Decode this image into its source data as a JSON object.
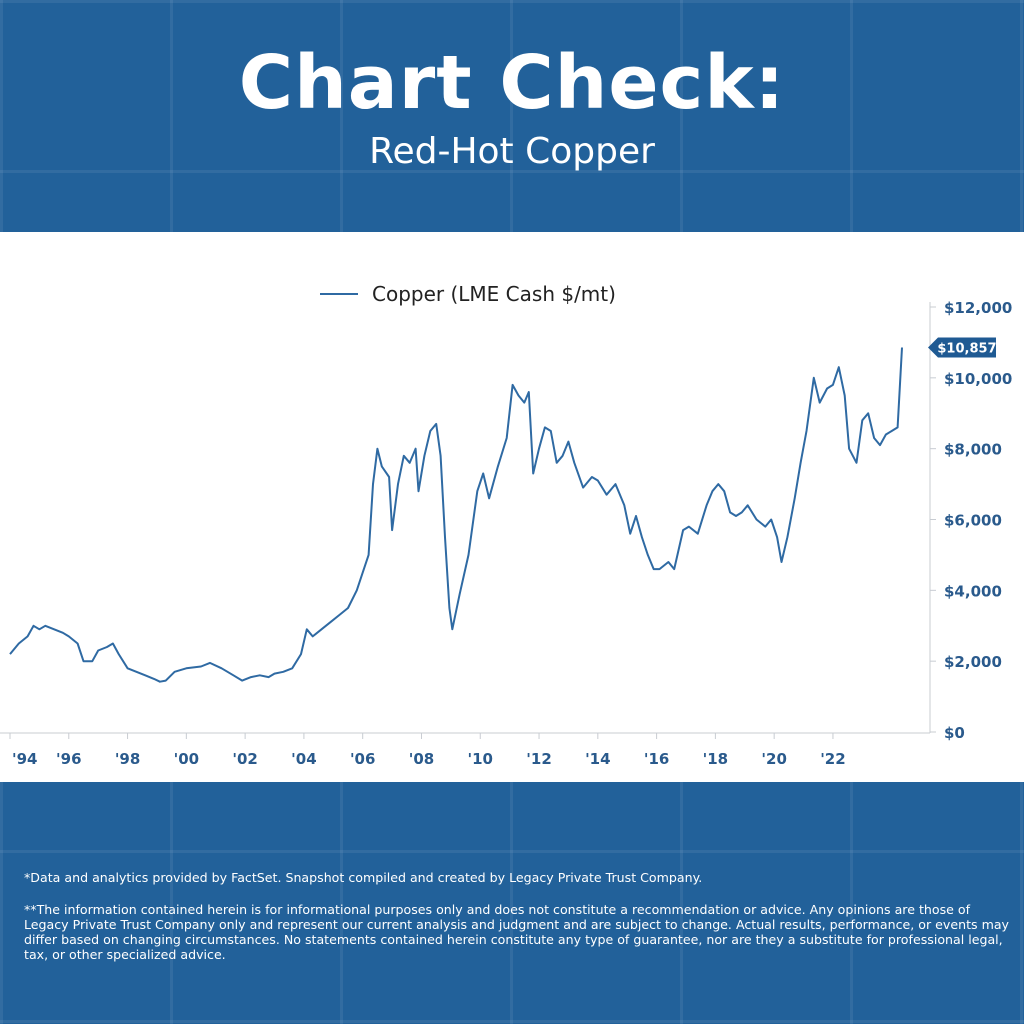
{
  "header": {
    "title": "Chart Check:",
    "subtitle": "Red-Hot Copper"
  },
  "footer": {
    "note1": "*Data and analytics provided by FactSet. Snapshot compiled and created by Legacy Private Trust Company.",
    "note2": "**The information contained herein is for informational purposes only and does not constitute a recommendation or advice. Any opinions are those of Legacy Private Trust Company only and represent our current analysis and judgment and are subject to change. Actual results, performance, or events may differ based on changing circumstances. No statements contained herein constitute any type of guarantee, nor are they a substitute for professional legal, tax, or other specialized advice."
  },
  "colors": {
    "background": "#22619a",
    "line": "#2f6aa3",
    "axis_text": "#2a5a8c",
    "callout": "#1f5a93"
  },
  "chart_data": {
    "type": "line",
    "title": "Chart Check: Red-Hot Copper",
    "legend": "Copper (LME Cash $/mt)",
    "legend_position": "top",
    "series": [
      {
        "name": "Copper (LME Cash $/mt)",
        "points": [
          [
            1994.0,
            2200
          ],
          [
            1994.3,
            2500
          ],
          [
            1994.6,
            2700
          ],
          [
            1994.8,
            3000
          ],
          [
            1995.0,
            2900
          ],
          [
            1995.2,
            3000
          ],
          [
            1995.5,
            2900
          ],
          [
            1995.8,
            2800
          ],
          [
            1996.0,
            2700
          ],
          [
            1996.3,
            2500
          ],
          [
            1996.5,
            2000
          ],
          [
            1996.8,
            2000
          ],
          [
            1997.0,
            2300
          ],
          [
            1997.3,
            2400
          ],
          [
            1997.5,
            2500
          ],
          [
            1997.7,
            2200
          ],
          [
            1998.0,
            1800
          ],
          [
            1998.3,
            1700
          ],
          [
            1998.6,
            1600
          ],
          [
            1998.9,
            1500
          ],
          [
            1999.1,
            1420
          ],
          [
            1999.3,
            1450
          ],
          [
            1999.6,
            1700
          ],
          [
            2000.0,
            1800
          ],
          [
            2000.5,
            1850
          ],
          [
            2000.8,
            1950
          ],
          [
            2001.2,
            1800
          ],
          [
            2001.6,
            1600
          ],
          [
            2001.9,
            1450
          ],
          [
            2002.2,
            1550
          ],
          [
            2002.5,
            1600
          ],
          [
            2002.8,
            1550
          ],
          [
            2003.0,
            1650
          ],
          [
            2003.3,
            1700
          ],
          [
            2003.6,
            1800
          ],
          [
            2003.9,
            2200
          ],
          [
            2004.1,
            2900
          ],
          [
            2004.3,
            2700
          ],
          [
            2004.6,
            2900
          ],
          [
            2004.9,
            3100
          ],
          [
            2005.2,
            3300
          ],
          [
            2005.5,
            3500
          ],
          [
            2005.8,
            4000
          ],
          [
            2006.0,
            4500
          ],
          [
            2006.2,
            5000
          ],
          [
            2006.35,
            7000
          ],
          [
            2006.5,
            8000
          ],
          [
            2006.65,
            7500
          ],
          [
            2006.9,
            7200
          ],
          [
            2007.0,
            5700
          ],
          [
            2007.2,
            7000
          ],
          [
            2007.4,
            7800
          ],
          [
            2007.6,
            7600
          ],
          [
            2007.8,
            8000
          ],
          [
            2007.9,
            6800
          ],
          [
            2008.1,
            7800
          ],
          [
            2008.3,
            8500
          ],
          [
            2008.5,
            8700
          ],
          [
            2008.65,
            7800
          ],
          [
            2008.8,
            5500
          ],
          [
            2008.95,
            3500
          ],
          [
            2009.05,
            2900
          ],
          [
            2009.3,
            3900
          ],
          [
            2009.6,
            5000
          ],
          [
            2009.9,
            6800
          ],
          [
            2010.1,
            7300
          ],
          [
            2010.3,
            6600
          ],
          [
            2010.6,
            7500
          ],
          [
            2010.9,
            8300
          ],
          [
            2011.1,
            9800
          ],
          [
            2011.3,
            9500
          ],
          [
            2011.5,
            9300
          ],
          [
            2011.65,
            9600
          ],
          [
            2011.8,
            7300
          ],
          [
            2012.0,
            8000
          ],
          [
            2012.2,
            8600
          ],
          [
            2012.4,
            8500
          ],
          [
            2012.6,
            7600
          ],
          [
            2012.8,
            7800
          ],
          [
            2013.0,
            8200
          ],
          [
            2013.2,
            7600
          ],
          [
            2013.5,
            6900
          ],
          [
            2013.8,
            7200
          ],
          [
            2014.0,
            7100
          ],
          [
            2014.3,
            6700
          ],
          [
            2014.6,
            7000
          ],
          [
            2014.9,
            6400
          ],
          [
            2015.1,
            5600
          ],
          [
            2015.3,
            6100
          ],
          [
            2015.5,
            5500
          ],
          [
            2015.7,
            5000
          ],
          [
            2015.9,
            4600
          ],
          [
            2016.1,
            4600
          ],
          [
            2016.4,
            4800
          ],
          [
            2016.6,
            4600
          ],
          [
            2016.9,
            5700
          ],
          [
            2017.1,
            5800
          ],
          [
            2017.4,
            5600
          ],
          [
            2017.7,
            6400
          ],
          [
            2017.9,
            6800
          ],
          [
            2018.1,
            7000
          ],
          [
            2018.3,
            6800
          ],
          [
            2018.5,
            6200
          ],
          [
            2018.7,
            6100
          ],
          [
            2018.9,
            6200
          ],
          [
            2019.1,
            6400
          ],
          [
            2019.4,
            6000
          ],
          [
            2019.7,
            5800
          ],
          [
            2019.9,
            6000
          ],
          [
            2020.1,
            5500
          ],
          [
            2020.25,
            4800
          ],
          [
            2020.45,
            5500
          ],
          [
            2020.7,
            6600
          ],
          [
            2020.9,
            7600
          ],
          [
            2021.1,
            8500
          ],
          [
            2021.35,
            10000
          ],
          [
            2021.55,
            9300
          ],
          [
            2021.8,
            9700
          ],
          [
            2022.0,
            9800
          ],
          [
            2022.2,
            10300
          ],
          [
            2022.4,
            9500
          ],
          [
            2022.55,
            8000
          ],
          [
            2022.8,
            7600
          ],
          [
            2023.0,
            8800
          ],
          [
            2023.2,
            9000
          ],
          [
            2023.4,
            8300
          ],
          [
            2023.6,
            8100
          ],
          [
            2023.8,
            8400
          ],
          [
            2024.0,
            8500
          ],
          [
            2024.2,
            8600
          ],
          [
            2024.35,
            10857
          ]
        ]
      }
    ],
    "xlim": [
      1994,
      2025.2
    ],
    "ylim": [
      0,
      12000
    ],
    "x_ticks": [
      {
        "value": 1994,
        "label": "'94"
      },
      {
        "value": 1996,
        "label": "'96"
      },
      {
        "value": 1998,
        "label": "'98"
      },
      {
        "value": 2000,
        "label": "'00"
      },
      {
        "value": 2002,
        "label": "'02"
      },
      {
        "value": 2004,
        "label": "'04"
      },
      {
        "value": 2006,
        "label": "'06"
      },
      {
        "value": 2008,
        "label": "'08"
      },
      {
        "value": 2010,
        "label": "'10"
      },
      {
        "value": 2012,
        "label": "'12"
      },
      {
        "value": 2014,
        "label": "'14"
      },
      {
        "value": 2016,
        "label": "'16"
      },
      {
        "value": 2018,
        "label": "'18"
      },
      {
        "value": 2020,
        "label": "'20"
      },
      {
        "value": 2022,
        "label": "'22"
      }
    ],
    "y_ticks": [
      {
        "value": 0,
        "label": "$0"
      },
      {
        "value": 2000,
        "label": "$2,000"
      },
      {
        "value": 4000,
        "label": "$4,000"
      },
      {
        "value": 6000,
        "label": "$6,000"
      },
      {
        "value": 8000,
        "label": "$8,000"
      },
      {
        "value": 10000,
        "label": "$10,000"
      },
      {
        "value": 12000,
        "label": "$12,000"
      }
    ],
    "last_value": {
      "value": 10857,
      "label": "$10,857"
    },
    "grid": false
  }
}
